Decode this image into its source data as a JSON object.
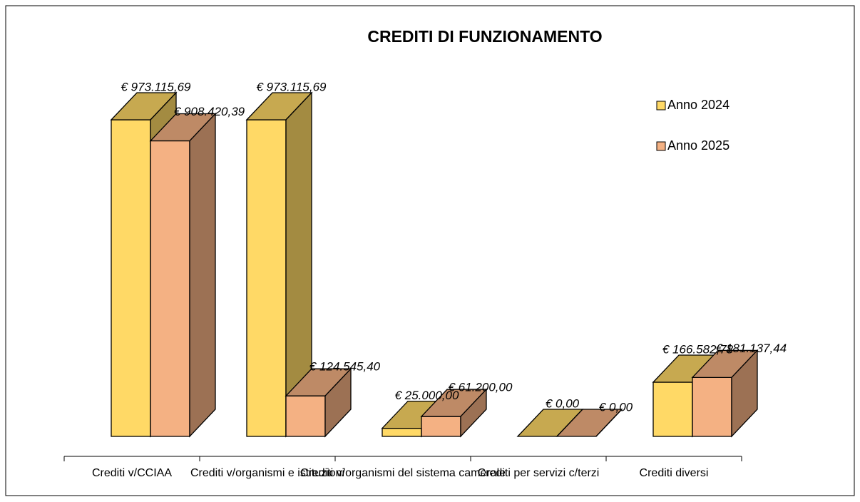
{
  "chart_data": {
    "type": "bar3d",
    "title": "CREDITI DI FUNZIONAMENTO",
    "categories": [
      "Crediti v/CCIAA",
      "Crediti v/organismi e istituzioni",
      "Crediti v/organismi del sistema camerale",
      "Crediti per servizi c/terzi",
      "Crediti diversi"
    ],
    "series": [
      {
        "name": "Anno 2024",
        "color": "#FFD966",
        "values": [
          973115.69,
          973115.69,
          25000.0,
          0,
          166582.78
        ],
        "value_labels": [
          "€ 973.115,69",
          "€ 973.115,69",
          "€ 25.000,00",
          "€ 0,00",
          "€ 166.582,78"
        ]
      },
      {
        "name": "Anno 2025",
        "color": "#F4B183",
        "values": [
          908420.39,
          124545.4,
          61200.0,
          0,
          181137.44
        ],
        "value_labels": [
          "€ 908.420,39",
          "€ 124.545,40",
          "€ 61.200,00",
          "€ 0,00",
          "€ 181.137,44"
        ]
      }
    ],
    "legend": "right"
  }
}
